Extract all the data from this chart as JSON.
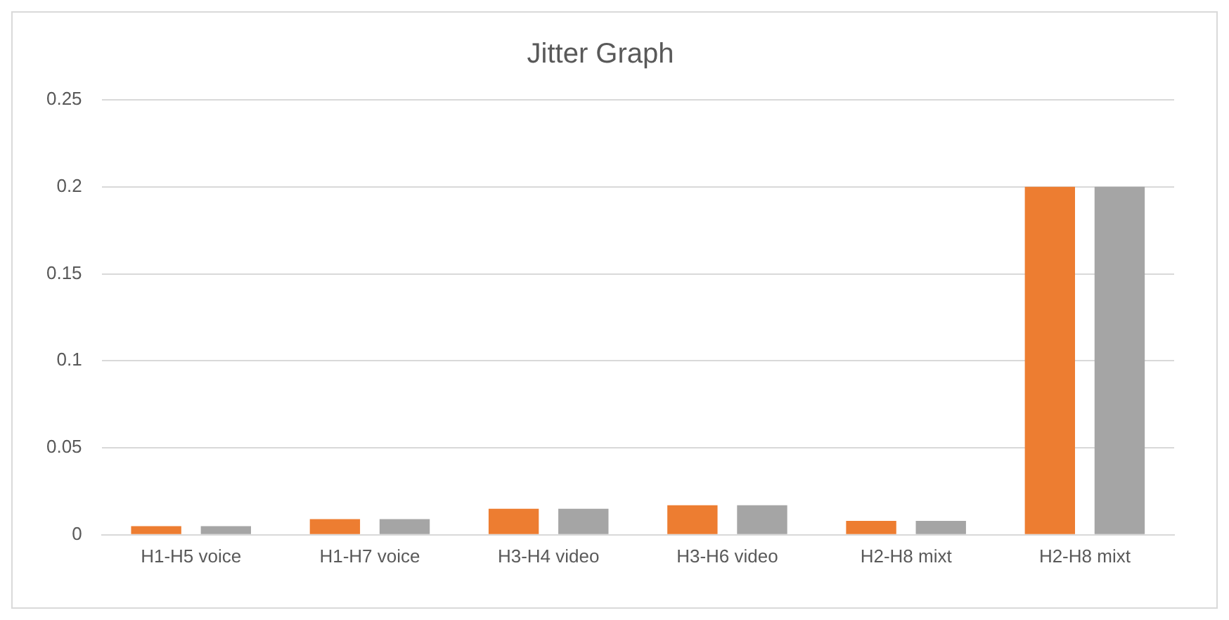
{
  "chart_data": {
    "type": "bar",
    "title": "Jitter Graph",
    "categories": [
      "H1-H5 voice",
      "H1-H7 voice",
      "H3-H4 video",
      "H3-H6 video",
      "H2-H8 mixt",
      "H2-H8 mixt"
    ],
    "series": [
      {
        "color": "#ed7d31",
        "values": [
          0.005,
          0.009,
          0.015,
          0.017,
          0.008,
          0.2
        ]
      },
      {
        "color": "#a5a5a5",
        "values": [
          0.005,
          0.009,
          0.015,
          0.017,
          0.008,
          0.2
        ]
      }
    ],
    "ylim": [
      0,
      0.25
    ],
    "yticks": [
      0,
      0.05,
      0.1,
      0.15,
      0.2,
      0.25
    ],
    "grid": "y"
  }
}
